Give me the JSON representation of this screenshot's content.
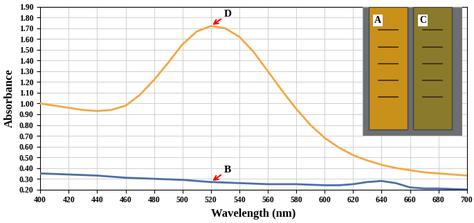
{
  "chart_data": {
    "type": "line",
    "x_label": "Wavelength (nm)",
    "y_label": "Absorbance",
    "x": [
      400,
      410,
      420,
      430,
      440,
      450,
      460,
      470,
      480,
      490,
      500,
      510,
      520,
      530,
      540,
      550,
      560,
      570,
      580,
      590,
      600,
      610,
      620,
      630,
      640,
      650,
      660,
      670,
      680,
      690,
      700
    ],
    "series": [
      {
        "color": "#f5a742",
        "values": [
          1.0,
          0.98,
          0.96,
          0.94,
          0.93,
          0.94,
          0.98,
          1.08,
          1.22,
          1.38,
          1.55,
          1.67,
          1.72,
          1.7,
          1.62,
          1.48,
          1.3,
          1.12,
          0.95,
          0.8,
          0.68,
          0.59,
          0.52,
          0.47,
          0.43,
          0.4,
          0.38,
          0.36,
          0.35,
          0.34,
          0.33
        ]
      },
      {
        "color": "#4a6fa5",
        "values": [
          0.35,
          0.345,
          0.34,
          0.335,
          0.33,
          0.32,
          0.31,
          0.305,
          0.3,
          0.295,
          0.29,
          0.28,
          0.27,
          0.265,
          0.26,
          0.255,
          0.25,
          0.25,
          0.25,
          0.245,
          0.24,
          0.24,
          0.25,
          0.27,
          0.28,
          0.26,
          0.22,
          0.21,
          0.21,
          0.205,
          0.2
        ]
      }
    ],
    "annotations": [
      {
        "text": "D",
        "x": 520,
        "y": 1.72
      },
      {
        "text": "B",
        "x": 520,
        "y": 0.27
      }
    ],
    "inset": {
      "labels": [
        "A",
        "C"
      ]
    },
    "xlim": [
      400,
      700
    ],
    "xticks": [
      400,
      420,
      440,
      460,
      480,
      500,
      520,
      540,
      560,
      580,
      600,
      620,
      640,
      660,
      680,
      700
    ],
    "ylim": [
      0.2,
      1.9
    ],
    "yticks": [
      {
        "value": 0.2,
        "label": "0.20"
      },
      {
        "value": 0.3,
        "label": "0.30"
      },
      {
        "value": 0.4,
        "label": "0.40"
      },
      {
        "value": 0.5,
        "label": "0.50"
      },
      {
        "value": 0.6,
        "label": "0.60"
      },
      {
        "value": 0.7,
        "label": "0.70"
      },
      {
        "value": 0.8,
        "label": "0.80"
      },
      {
        "value": 0.9,
        "label": "0.90"
      },
      {
        "value": 1.0,
        "label": "1.00"
      },
      {
        "value": 1.1,
        "label": "1.10"
      },
      {
        "value": 1.2,
        "label": "1.20"
      },
      {
        "value": 1.3,
        "label": "1.30"
      },
      {
        "value": 1.4,
        "label": "1.40"
      },
      {
        "value": 1.5,
        "label": "1.50"
      },
      {
        "value": 1.6,
        "label": "1.60"
      },
      {
        "value": 1.7,
        "label": "1.70"
      },
      {
        "value": 1.8,
        "label": "1.80"
      },
      {
        "value": 1.9,
        "label": "1.90"
      }
    ],
    "grid": true
  }
}
